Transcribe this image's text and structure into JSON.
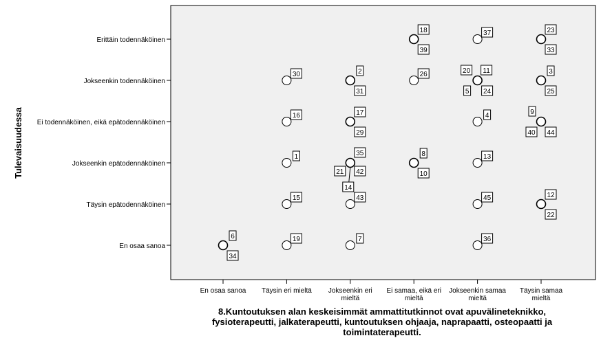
{
  "chart_data": {
    "type": "scatter",
    "title": "",
    "xlabel_lines": [
      "8.Kuntoutuksen alan keskeisimmät ammattitutkinnot ovat apuvälineteknikko,",
      "fysioterapeutti, jalkaterapeutti, kuntoutuksen ohjaaja, naprapaatti, osteopaatti ja",
      "toimintaterapeutti."
    ],
    "ylabel": "Tulevaisuudessa",
    "x_categories": [
      "En osaa sanoa",
      "Täysin eri mieltä",
      "Jokseenkin eri mieltä",
      "Ei samaa, eikä eri mieltä",
      "Jokseenkin samaa mieltä",
      "Täysin samaa mieltä"
    ],
    "x_tick_labels": [
      [
        "En osaa sanoa"
      ],
      [
        "Täysin eri mieltä"
      ],
      [
        "Jokseenkin eri",
        "mieltä"
      ],
      [
        "Ei samaa, eikä eri",
        "mieltä"
      ],
      [
        "Jokseenkin samaa",
        "mieltä"
      ],
      [
        "Täysin samaa",
        "mieltä"
      ]
    ],
    "y_categories": [
      "Erittäin todennäköinen",
      "Jokseenkin todennäköinen",
      "Ei todennäköinen, eikä epätodennäköinen",
      "Jokseenkin epätodennäköinen",
      "Täysin epätodennäköinen",
      "En osaa sanoa"
    ],
    "points": [
      {
        "x": "Ei samaa, eikä eri mieltä",
        "y": "Erittäin todennäköinen",
        "labels": [
          "18",
          "39"
        ]
      },
      {
        "x": "Jokseenkin samaa mieltä",
        "y": "Erittäin todennäköinen",
        "labels": [
          "37"
        ]
      },
      {
        "x": "Täysin samaa mieltä",
        "y": "Erittäin todennäköinen",
        "labels": [
          "23",
          "33"
        ]
      },
      {
        "x": "Täysin eri mieltä",
        "y": "Jokseenkin todennäköinen",
        "labels": [
          "30"
        ]
      },
      {
        "x": "Jokseenkin eri mieltä",
        "y": "Jokseenkin todennäköinen",
        "labels": [
          "2",
          "31"
        ]
      },
      {
        "x": "Ei samaa, eikä eri mieltä",
        "y": "Jokseenkin todennäköinen",
        "labels": [
          "26"
        ]
      },
      {
        "x": "Jokseenkin samaa mieltä",
        "y": "Jokseenkin todennäköinen",
        "labels": [
          "20",
          "11",
          "5",
          "24"
        ]
      },
      {
        "x": "Täysin samaa mieltä",
        "y": "Jokseenkin todennäköinen",
        "labels": [
          "3",
          "25"
        ]
      },
      {
        "x": "Täysin eri mieltä",
        "y": "Ei todennäköinen, eikä epätodennäköinen",
        "labels": [
          "16"
        ]
      },
      {
        "x": "Jokseenkin eri mieltä",
        "y": "Ei todennäköinen, eikä epätodennäköinen",
        "labels": [
          "17",
          "29"
        ]
      },
      {
        "x": "Jokseenkin samaa mieltä",
        "y": "Ei todennäköinen, eikä epätodennäköinen",
        "labels": [
          "4"
        ]
      },
      {
        "x": "Täysin samaa mieltä",
        "y": "Ei todennäköinen, eikä epätodennäköinen",
        "labels": [
          "9",
          "40",
          "44"
        ]
      },
      {
        "x": "Täysin eri mieltä",
        "y": "Jokseenkin epätodennäköinen",
        "labels": [
          "1"
        ]
      },
      {
        "x": "Jokseenkin eri mieltä",
        "y": "Jokseenkin epätodennäköinen",
        "labels": [
          "35",
          "21",
          "42",
          "14"
        ]
      },
      {
        "x": "Ei samaa, eikä eri mieltä",
        "y": "Jokseenkin epätodennäköinen",
        "labels": [
          "8",
          "10"
        ]
      },
      {
        "x": "Jokseenkin samaa mieltä",
        "y": "Jokseenkin epätodennäköinen",
        "labels": [
          "13"
        ]
      },
      {
        "x": "Täysin eri mieltä",
        "y": "Täysin epätodennäköinen",
        "labels": [
          "15"
        ]
      },
      {
        "x": "Jokseenkin eri mieltä",
        "y": "Täysin epätodennäköinen",
        "labels": [
          "43"
        ]
      },
      {
        "x": "Jokseenkin samaa mieltä",
        "y": "Täysin epätodennäköinen",
        "labels": [
          "45"
        ]
      },
      {
        "x": "Täysin samaa mieltä",
        "y": "Täysin epätodennäköinen",
        "labels": [
          "12",
          "22"
        ]
      },
      {
        "x": "En osaa sanoa",
        "y": "En osaa sanoa",
        "labels": [
          "6",
          "34"
        ]
      },
      {
        "x": "Täysin eri mieltä",
        "y": "En osaa sanoa",
        "labels": [
          "19"
        ]
      },
      {
        "x": "Jokseenkin eri mieltä",
        "y": "En osaa sanoa",
        "labels": [
          "7"
        ]
      },
      {
        "x": "Jokseenkin samaa mieltä",
        "y": "En osaa sanoa",
        "labels": [
          "36"
        ]
      }
    ],
    "grid": false,
    "legend": "none",
    "colors": {
      "plot_background": "#f0f0f0",
      "marker_edge": "#000000",
      "marker_fill": "#ffffff"
    }
  }
}
